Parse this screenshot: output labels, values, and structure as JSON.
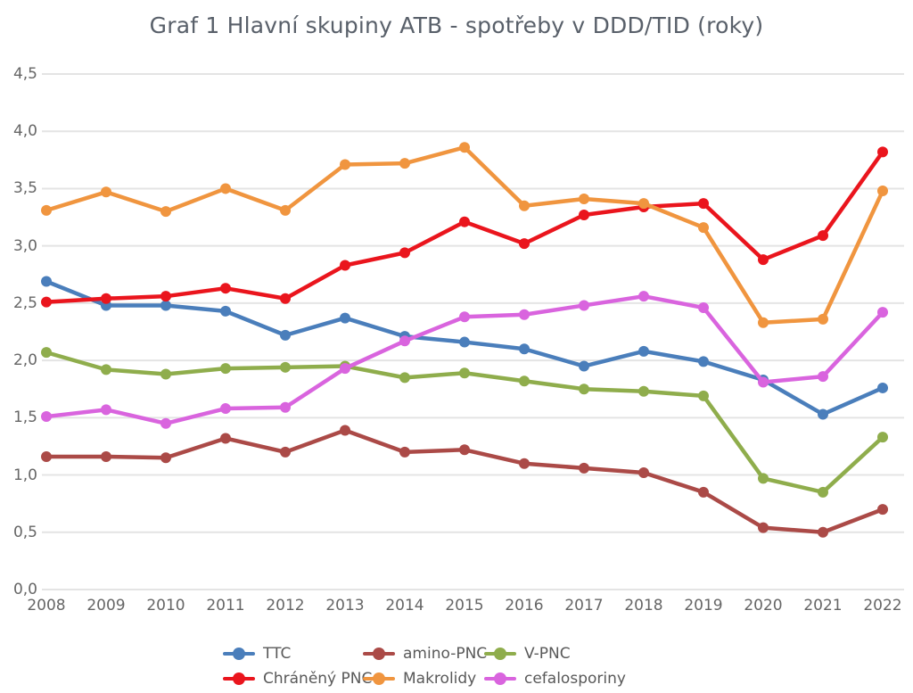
{
  "chart_data": {
    "type": "line",
    "title": "Graf 1 Hlavní skupiny ATB - spotřeby v DDD/TID (roky)",
    "categories": [
      "2008",
      "2009",
      "2010",
      "2011",
      "2012",
      "2013",
      "2014",
      "2015",
      "2016",
      "2017",
      "2018",
      "2019",
      "2020",
      "2021",
      "2022"
    ],
    "xlabel": "",
    "ylabel": "",
    "ylim": [
      0,
      4.5
    ],
    "yticks": [
      0,
      0.5,
      1.0,
      1.5,
      2.0,
      2.5,
      3.0,
      3.5,
      4.0,
      4.5
    ],
    "ytick_labels": [
      "0,0",
      "0,5",
      "1,0",
      "1,5",
      "2,0",
      "2,5",
      "3,0",
      "3,5",
      "4,0",
      "4,5"
    ],
    "grid": "horizontal",
    "legend_position": "bottom",
    "series": [
      {
        "name": "TTC",
        "color": "#4a7ebb",
        "values": [
          2.69,
          2.48,
          2.48,
          2.43,
          2.22,
          2.37,
          2.21,
          2.16,
          2.1,
          1.95,
          2.08,
          1.99,
          1.83,
          1.53,
          1.76
        ]
      },
      {
        "name": "amino-PNC",
        "color": "#ab4a47",
        "values": [
          1.16,
          1.16,
          1.15,
          1.32,
          1.2,
          1.39,
          1.2,
          1.22,
          1.1,
          1.06,
          1.02,
          0.85,
          0.54,
          0.5,
          0.7
        ]
      },
      {
        "name": "V-PNC",
        "color": "#8fad4c",
        "values": [
          2.07,
          1.92,
          1.88,
          1.93,
          1.94,
          1.95,
          1.85,
          1.89,
          1.82,
          1.75,
          1.73,
          1.69,
          0.97,
          0.85,
          1.33
        ]
      },
      {
        "name": "Chráněný PNC",
        "color": "#ea151d",
        "values": [
          2.51,
          2.54,
          2.56,
          2.63,
          2.54,
          2.83,
          2.94,
          3.21,
          3.02,
          3.27,
          3.34,
          3.37,
          2.88,
          3.09,
          3.82
        ]
      },
      {
        "name": "Makrolidy",
        "color": "#f0953f",
        "values": [
          3.31,
          3.47,
          3.3,
          3.5,
          3.31,
          3.71,
          3.72,
          3.86,
          3.35,
          3.41,
          3.37,
          3.16,
          2.33,
          2.36,
          3.48
        ]
      },
      {
        "name": "cefalosporiny",
        "color": "#d964de",
        "values": [
          1.51,
          1.57,
          1.45,
          1.58,
          1.59,
          1.93,
          2.17,
          2.38,
          2.4,
          2.48,
          2.56,
          2.46,
          1.81,
          1.86,
          2.42
        ]
      }
    ]
  },
  "style": {
    "title_color": "#59606a",
    "axis_label_color": "#666666",
    "legend_text_color": "#595959",
    "gridline_color": "#e4e4e4",
    "background_color": "#ffffff"
  }
}
